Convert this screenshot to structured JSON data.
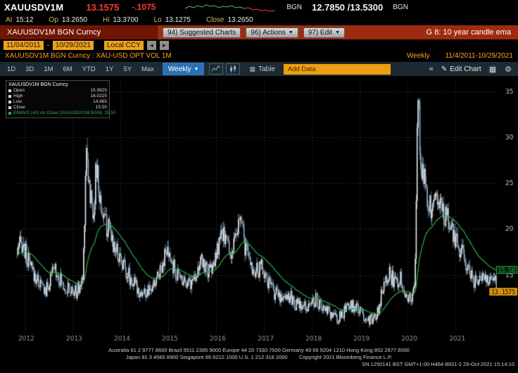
{
  "quote_bar": {
    "ticker": "XAUUSDV1M",
    "last": "13.1575",
    "change": "-.1075",
    "bid_source": "BGN",
    "bid_ask": "12.7850 /13.5300",
    "ask_source": "BGN"
  },
  "stats_bar": {
    "items": [
      {
        "label": "At",
        "value": "15:12"
      },
      {
        "label": "Op",
        "value": "13.2650"
      },
      {
        "label": "Hi",
        "value": "13.3700"
      },
      {
        "label": "Lo",
        "value": "13.1275"
      },
      {
        "label": "Close",
        "value": "13.2650"
      }
    ]
  },
  "command_bar": {
    "security_title": "XAUUSDV1M BGN Curncy",
    "suggested_charts_label": "94) Suggested Charts",
    "actions_label": "96) Actions",
    "edit_label": "97) Edit",
    "dropdown_arrow": "▼",
    "screen_label": "G 8: 10 year candle ema"
  },
  "range_bar": {
    "start_date": "11/04/2011",
    "date_separator": "-",
    "end_date": "10/29/2021",
    "currency_label": "Local CCY",
    "prev_arrow": "◄",
    "next_arrow": "►"
  },
  "security_line": {
    "left": "XAUUSDV1M BGN Curncy : XAU-USD OPT VOL 1M",
    "period": "Weekly",
    "range": "11/4/2011-10/29/2021"
  },
  "toolbar": {
    "ranges": [
      "1D",
      "3D",
      "1M",
      "6M",
      "YTD",
      "1Y",
      "5Y",
      "Max"
    ],
    "frequency_label": "Weekly",
    "dropdown_arrow": "▼",
    "table_label": "Table",
    "add_data_label": "Add Data",
    "collapse_icon": "«",
    "pencil_icon": "✎",
    "edit_chart_label": "Edit Chart",
    "grid_icon": "▦",
    "gear_icon": "⚙"
  },
  "legend": {
    "title": "XAUUSDV1M BGN Curncy",
    "items": [
      {
        "label": "Open",
        "value": "15.9925"
      },
      {
        "label": "High",
        "value": "16.0225"
      },
      {
        "label": "Low",
        "value": "14.965"
      },
      {
        "label": "Close",
        "value": "15.50"
      }
    ],
    "ema_label": "EMAVG (40) on Close (XAUUSDV1M BGN)",
    "ema_value": "15.50"
  },
  "chart_data": {
    "type": "candlestick",
    "symbol": "XAUUSDV1M BGN Curncy",
    "description": "XAU-USD OPT VOL 1M",
    "frequency": "weekly",
    "x_range": [
      2011.84,
      2021.92
    ],
    "y_range": [
      8.6,
      36.6
    ],
    "y_ticks": [
      15,
      20,
      25,
      30,
      35
    ],
    "x_ticks": [
      2012,
      2013,
      2014,
      2015,
      2016,
      2017,
      2018,
      2019,
      2020,
      2021
    ],
    "weeks": 521,
    "ema_period": 40,
    "last_price": 13.1575,
    "last_price_label": "13.1575",
    "ema_last": 15.5,
    "ema_last_label": "15.50",
    "up_color": "#e3ecf2",
    "down_color": "#93acc0",
    "ema_color": "#2fae4a",
    "badge_color": "#d9930f",
    "anchors": [
      [
        2011.84,
        17.2
      ],
      [
        2011.95,
        18.6
      ],
      [
        2012.05,
        16.8
      ],
      [
        2012.15,
        15.4
      ],
      [
        2012.3,
        14.2
      ],
      [
        2012.45,
        13.2
      ],
      [
        2012.55,
        14.6
      ],
      [
        2012.63,
        15.9
      ],
      [
        2012.75,
        14.4
      ],
      [
        2012.9,
        13.4
      ],
      [
        2013.05,
        13.0
      ],
      [
        2013.15,
        13.6
      ],
      [
        2013.22,
        14.6
      ],
      [
        2013.29,
        29.6
      ],
      [
        2013.36,
        24.0
      ],
      [
        2013.44,
        21.8
      ],
      [
        2013.5,
        26.8
      ],
      [
        2013.57,
        23.2
      ],
      [
        2013.68,
        20.8
      ],
      [
        2013.8,
        19.2
      ],
      [
        2013.93,
        17.6
      ],
      [
        2014.05,
        16.4
      ],
      [
        2014.18,
        14.9
      ],
      [
        2014.3,
        13.9
      ],
      [
        2014.45,
        13.0
      ],
      [
        2014.58,
        12.9
      ],
      [
        2014.7,
        13.8
      ],
      [
        2014.82,
        15.6
      ],
      [
        2014.95,
        17.4
      ],
      [
        2015.08,
        16.2
      ],
      [
        2015.2,
        14.8
      ],
      [
        2015.35,
        14.6
      ],
      [
        2015.48,
        14.1
      ],
      [
        2015.6,
        15.6
      ],
      [
        2015.72,
        16.4
      ],
      [
        2015.85,
        15.2
      ],
      [
        2015.98,
        16.4
      ],
      [
        2016.08,
        18.9
      ],
      [
        2016.18,
        19.4
      ],
      [
        2016.3,
        17.2
      ],
      [
        2016.42,
        18.8
      ],
      [
        2016.5,
        21.4
      ],
      [
        2016.62,
        17.6
      ],
      [
        2016.75,
        15.8
      ],
      [
        2016.88,
        15.2
      ],
      [
        2016.95,
        16.2
      ],
      [
        2017.08,
        14.2
      ],
      [
        2017.2,
        13.2
      ],
      [
        2017.35,
        12.6
      ],
      [
        2017.5,
        12.9
      ],
      [
        2017.65,
        11.9
      ],
      [
        2017.8,
        11.4
      ],
      [
        2017.95,
        11.7
      ],
      [
        2018.08,
        12.4
      ],
      [
        2018.2,
        11.4
      ],
      [
        2018.38,
        10.7
      ],
      [
        2018.55,
        10.2
      ],
      [
        2018.7,
        11.1
      ],
      [
        2018.85,
        11.7
      ],
      [
        2019.0,
        11.0
      ],
      [
        2019.15,
        10.3
      ],
      [
        2019.28,
        10.0
      ],
      [
        2019.4,
        11.4
      ],
      [
        2019.5,
        14.4
      ],
      [
        2019.6,
        15.4
      ],
      [
        2019.72,
        14.2
      ],
      [
        2019.85,
        14.8
      ],
      [
        2019.97,
        12.8
      ],
      [
        2020.08,
        12.2
      ],
      [
        2020.15,
        13.8
      ],
      [
        2020.21,
        35.4
      ],
      [
        2020.27,
        27.6
      ],
      [
        2020.38,
        24.6
      ],
      [
        2020.5,
        21.6
      ],
      [
        2020.6,
        24.2
      ],
      [
        2020.72,
        21.8
      ],
      [
        2020.85,
        21.0
      ],
      [
        2020.97,
        19.2
      ],
      [
        2021.1,
        17.6
      ],
      [
        2021.22,
        16.2
      ],
      [
        2021.35,
        14.8
      ],
      [
        2021.47,
        13.9
      ],
      [
        2021.58,
        15.1
      ],
      [
        2021.7,
        14.3
      ],
      [
        2021.8,
        14.9
      ],
      [
        2021.9,
        13.2
      ]
    ]
  },
  "footer": {
    "line1": "Australia 61 2 9777 8600 Brazil 5511 2395 9000 Europe 44 20 7330 7500 Germany 49 69 9204 1210 Hong Kong 852 2977 6000",
    "line2": "Japan 81 3 4565 8900 Singapore 65 6212 1000 U.S. 1 212 318 2000",
    "copyright": "Copyright 2021 Bloomberg Finance L.P.",
    "terminal_info": "SN 1250141 BST GMT+1:00 H464-8931-2 29-Oct-2021 15:14:10"
  }
}
